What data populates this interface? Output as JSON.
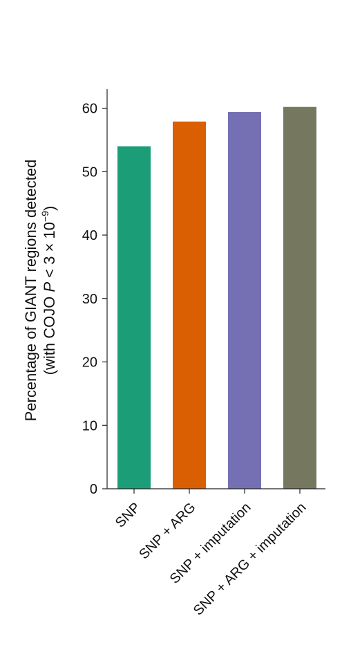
{
  "chart_data": {
    "type": "bar",
    "categories": [
      "SNP",
      "SNP + ARG",
      "SNP + imputation",
      "SNP + ARG + imputation"
    ],
    "values": [
      54.0,
      57.9,
      59.4,
      60.2
    ],
    "colors": [
      "#1b9e77",
      "#d95f02",
      "#7570b3",
      "#76775f"
    ],
    "title": "",
    "xlabel": "",
    "ylabel_line1": "Percentage of GIANT regions detected",
    "ylabel_line2_prefix": "(with COJO ",
    "ylabel_line2_italic": "P",
    "ylabel_line2_middle": " < 3 × 10",
    "ylabel_line2_sup": "−9",
    "ylabel_line2_suffix": ")",
    "ylim": [
      0,
      63
    ],
    "yticks": [
      0,
      10,
      20,
      30,
      40,
      50,
      60
    ],
    "grid": false,
    "legend": "none"
  }
}
